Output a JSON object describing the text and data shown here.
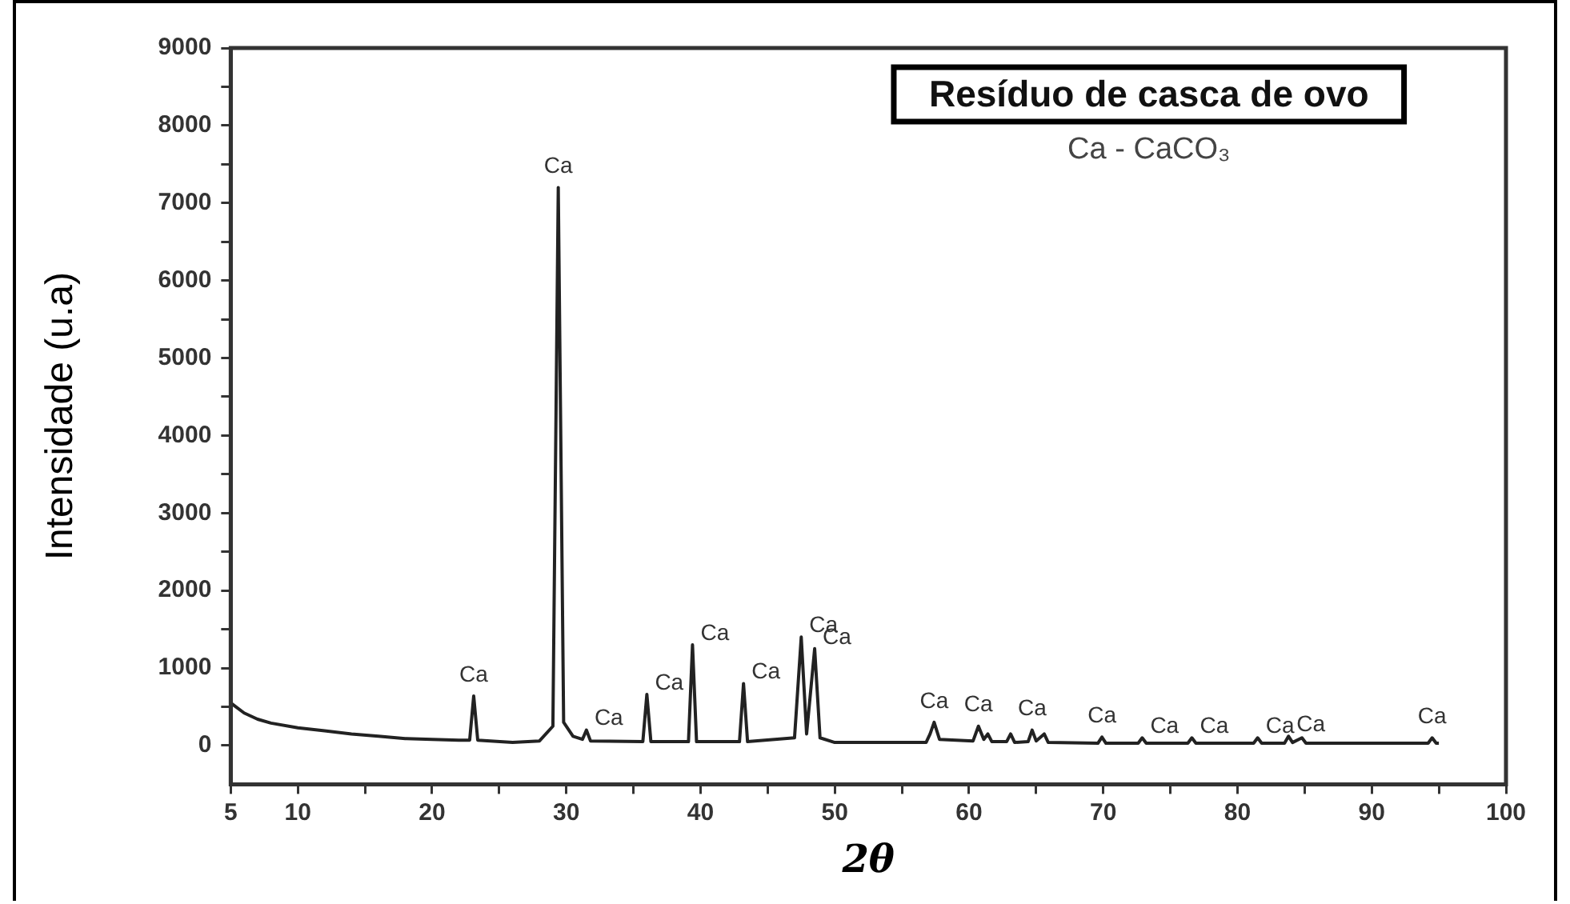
{
  "chart_data": {
    "type": "line",
    "title": "Resíduo de casca de ovo",
    "subtitle": "Ca - CaCO₃",
    "xlabel": "2θ",
    "ylabel": "Intensidade (u.a)",
    "x": [
      5,
      6,
      7,
      8,
      10,
      12,
      14,
      16,
      18,
      20,
      22,
      22.8,
      23.1,
      23.4,
      26,
      28,
      29,
      29.4,
      29.8,
      30.5,
      31.2,
      31.5,
      31.8,
      35.7,
      36,
      36.3,
      39.1,
      39.4,
      39.7,
      42.9,
      43.2,
      43.5,
      47,
      47.5,
      47.9,
      48.5,
      48.9,
      50,
      56.8,
      57.1,
      57.4,
      57.8,
      60.3,
      60.7,
      61.1,
      61.4,
      61.7,
      62.8,
      63.1,
      63.4,
      64.4,
      64.7,
      65,
      65.6,
      65.9,
      69.6,
      69.9,
      70.2,
      72.6,
      72.9,
      73.2,
      76.3,
      76.6,
      76.9,
      81.2,
      81.5,
      81.8,
      83.5,
      83.8,
      84.1,
      84.8,
      85.1,
      94.2,
      94.5,
      94.8,
      95
    ],
    "series": [
      {
        "color": "#222222",
        "values": [
          550,
          420,
          340,
          290,
          230,
          190,
          150,
          120,
          90,
          80,
          70,
          70,
          640,
          70,
          40,
          60,
          250,
          7200,
          300,
          120,
          80,
          200,
          60,
          50,
          660,
          50,
          50,
          1300,
          50,
          50,
          800,
          50,
          100,
          1400,
          150,
          1250,
          100,
          40,
          40,
          150,
          300,
          80,
          60,
          250,
          80,
          150,
          50,
          50,
          150,
          40,
          50,
          200,
          60,
          150,
          40,
          30,
          110,
          30,
          30,
          100,
          30,
          30,
          100,
          30,
          30,
          100,
          30,
          30,
          120,
          40,
          100,
          30,
          30,
          100,
          30,
          30
        ]
      }
    ],
    "xlim": [
      5,
      100
    ],
    "ylim": [
      -500,
      9000
    ],
    "xticks": [
      5,
      10,
      {
        "value": 15,
        "label": null
      },
      20,
      {
        "value": 25,
        "label": null
      },
      30,
      {
        "value": 35,
        "label": null
      },
      40,
      {
        "value": 45,
        "label": null
      },
      50,
      {
        "value": 55,
        "label": null
      },
      60,
      {
        "value": 65,
        "label": null
      },
      70,
      {
        "value": 75,
        "label": null
      },
      80,
      {
        "value": 85,
        "label": null
      },
      90,
      {
        "value": 95,
        "label": null
      },
      100
    ],
    "yticks": [
      0,
      {
        "value": 500,
        "label": null
      },
      1000,
      {
        "value": 1500,
        "label": null
      },
      2000,
      {
        "value": 2500,
        "label": null
      },
      3000,
      {
        "value": 3500,
        "label": null
      },
      4000,
      {
        "value": 4500,
        "label": null
      },
      5000,
      {
        "value": 5500,
        "label": null
      },
      6000,
      {
        "value": 6500,
        "label": null
      },
      7000,
      {
        "value": 7500,
        "label": null
      },
      8000,
      {
        "value": 8500,
        "label": null
      },
      9000
    ],
    "annotations": [
      {
        "text": "Ca",
        "x": 23.1,
        "y": 640
      },
      {
        "text": "Ca",
        "x": 29.4,
        "y": 7200
      },
      {
        "text": "Ca",
        "x": 31.5,
        "y": 200
      },
      {
        "text": "Ca",
        "x": 36,
        "y": 660
      },
      {
        "text": "Ca",
        "x": 39.4,
        "y": 1300
      },
      {
        "text": "Ca",
        "x": 43.2,
        "y": 800
      },
      {
        "text": "Ca",
        "x": 47.5,
        "y": 1400
      },
      {
        "text": "Ca",
        "x": 48.5,
        "y": 1250
      },
      {
        "text": "Ca",
        "x": 57.4,
        "y": 300
      },
      {
        "text": "Ca",
        "x": 60.7,
        "y": 250
      },
      {
        "text": "Ca",
        "x": 64.7,
        "y": 200
      },
      {
        "text": "Ca",
        "x": 69.9,
        "y": 110
      },
      {
        "text": "Ca",
        "x": 72.9,
        "y": 100
      },
      {
        "text": "Ca",
        "x": 76.6,
        "y": 100
      },
      {
        "text": "Ca",
        "x": 81.5,
        "y": 100
      },
      {
        "text": "Ca",
        "x": 83.8,
        "y": 120
      },
      {
        "text": "Ca",
        "x": 94.5,
        "y": 100
      }
    ],
    "grid": false,
    "legend": false,
    "marker": "none",
    "line_style": "solid"
  }
}
